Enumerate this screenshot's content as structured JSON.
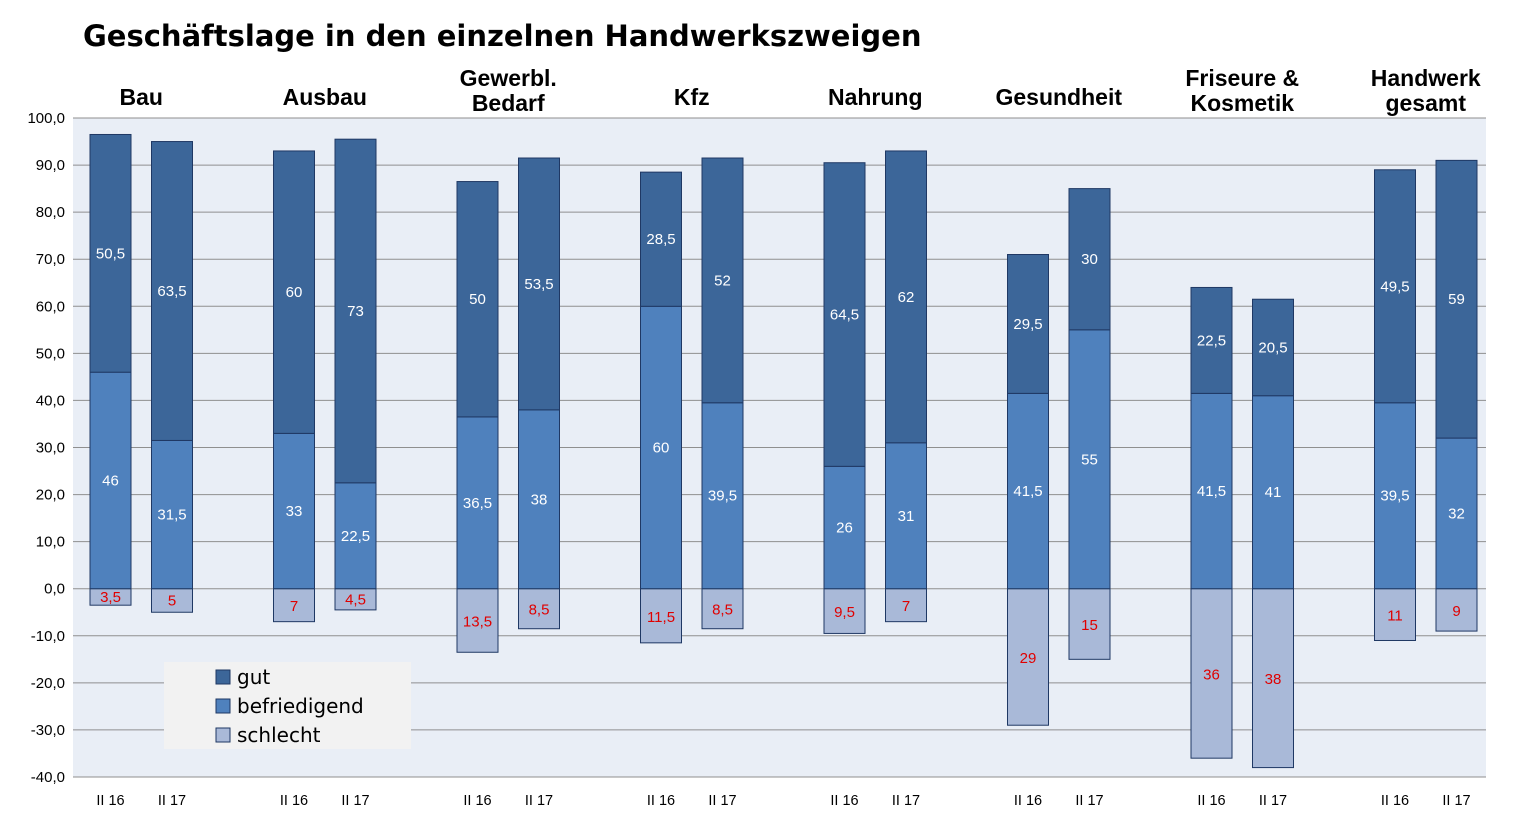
{
  "chart_data": {
    "type": "bar",
    "stacked": true,
    "title": "Geschäftslage in den einzelnen Handwerkszweigen",
    "groups": [
      {
        "name": [
          "Bau"
        ],
        "periods": [
          "II 16",
          "II 17"
        ],
        "gut": [
          50.5,
          63.5
        ],
        "befriedigend": [
          46,
          31.5
        ],
        "schlecht": [
          3.5,
          5
        ]
      },
      {
        "name": [
          "Ausbau"
        ],
        "periods": [
          "II 16",
          "II 17"
        ],
        "gut": [
          60,
          73
        ],
        "befriedigend": [
          33,
          22.5
        ],
        "schlecht": [
          7,
          4.5
        ]
      },
      {
        "name": [
          "Gewerbl.",
          "Bedarf"
        ],
        "periods": [
          "II 16",
          "II 17"
        ],
        "gut": [
          50,
          53.5
        ],
        "befriedigend": [
          36.5,
          38
        ],
        "schlecht": [
          13.5,
          8.5
        ]
      },
      {
        "name": [
          "Kfz"
        ],
        "periods": [
          "II 16",
          "II 17"
        ],
        "gut": [
          28.5,
          52
        ],
        "befriedigend": [
          60,
          39.5
        ],
        "schlecht": [
          11.5,
          8.5
        ]
      },
      {
        "name": [
          "Nahrung"
        ],
        "periods": [
          "II 16",
          "II 17"
        ],
        "gut": [
          64.5,
          62
        ],
        "befriedigend": [
          26,
          31
        ],
        "schlecht": [
          9.5,
          7
        ]
      },
      {
        "name": [
          "Gesundheit"
        ],
        "periods": [
          "II 16",
          "II 17"
        ],
        "gut": [
          29.5,
          30
        ],
        "befriedigend": [
          41.5,
          55
        ],
        "schlecht": [
          29,
          15
        ]
      },
      {
        "name": [
          "Friseure &",
          "Kosmetik"
        ],
        "periods": [
          "II 16",
          "II 17"
        ],
        "gut": [
          22.5,
          20.5
        ],
        "befriedigend": [
          41.5,
          41
        ],
        "schlecht": [
          36,
          38
        ]
      },
      {
        "name": [
          "Handwerk",
          "gesamt"
        ],
        "periods": [
          "II 16",
          "II 17"
        ],
        "gut": [
          49.5,
          59
        ],
        "befriedigend": [
          39.5,
          32
        ],
        "schlecht": [
          11,
          9
        ]
      }
    ],
    "series": [
      {
        "key": "gut",
        "name": "gut",
        "color": "#3c6699"
      },
      {
        "key": "befriedigend",
        "name": "befriedigend",
        "color": "#4f81bd"
      },
      {
        "key": "schlecht",
        "name": "schlecht",
        "color": "#a9b9d8"
      }
    ],
    "ylim": [
      -40,
      100
    ],
    "yticks": [
      "-40,0",
      "-30,0",
      "-20,0",
      "-10,0",
      "0,0",
      "10,0",
      "20,0",
      "30,0",
      "40,0",
      "50,0",
      "60,0",
      "70,0",
      "80,0",
      "90,0",
      "100,0"
    ],
    "grid": true,
    "legend_position": "bottom-left",
    "plot_background": "#e9eef6",
    "label_color_negative": "#e00000"
  }
}
